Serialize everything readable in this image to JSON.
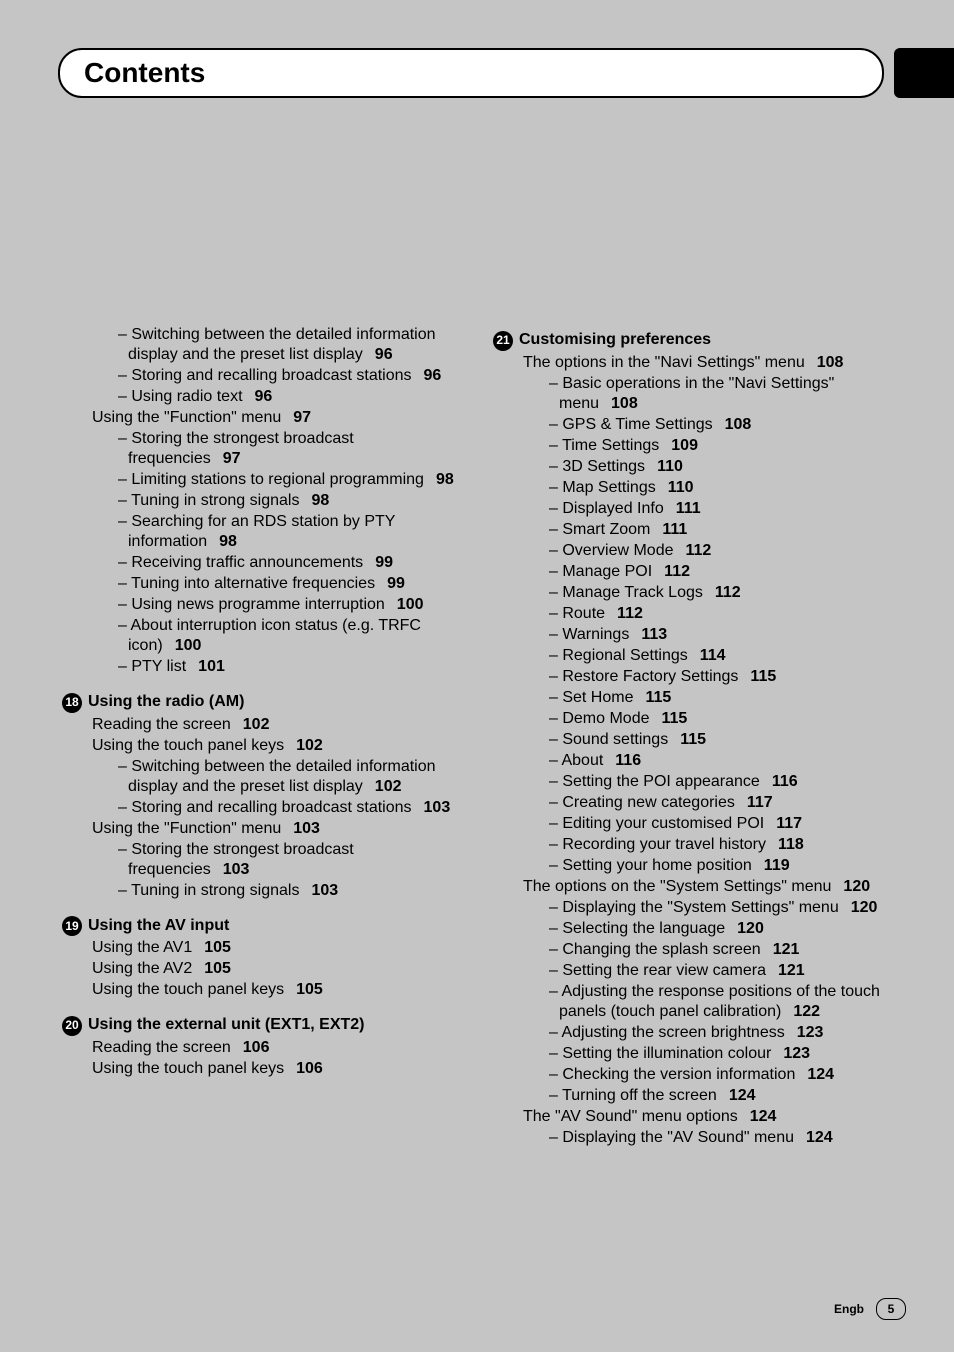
{
  "header": {
    "title": "Contents"
  },
  "footer": {
    "lang": "Engb",
    "page": "5"
  },
  "left": {
    "pre": [
      {
        "type": "sub",
        "text": "Switching between the detailed information display and the preset list display",
        "page": "96"
      },
      {
        "type": "sub",
        "text": "Storing and recalling broadcast stations",
        "page": "96"
      },
      {
        "type": "sub",
        "text": "Using radio text",
        "page": "96"
      },
      {
        "type": "top",
        "text": "Using the \"Function\" menu",
        "page": "97"
      },
      {
        "type": "sub",
        "text": "Storing the strongest broadcast frequencies",
        "page": "97"
      },
      {
        "type": "sub",
        "text": "Limiting stations to regional programming",
        "page": "98"
      },
      {
        "type": "sub",
        "text": "Tuning in strong signals",
        "page": "98"
      },
      {
        "type": "sub",
        "text": "Searching for an RDS station by PTY information",
        "page": "98"
      },
      {
        "type": "sub",
        "text": "Receiving traffic announcements",
        "page": "99"
      },
      {
        "type": "sub",
        "text": "Tuning into alternative frequencies",
        "page": "99"
      },
      {
        "type": "sub",
        "text": "Using news programme interruption",
        "page": "100"
      },
      {
        "type": "sub",
        "text": "About interruption icon status (e.g. TRFC icon)",
        "page": "100"
      },
      {
        "type": "sub",
        "text": "PTY list",
        "page": "101"
      }
    ],
    "chapters": [
      {
        "num": "18",
        "title": "Using the radio (AM)",
        "lines": [
          {
            "type": "top",
            "text": "Reading the screen",
            "page": "102"
          },
          {
            "type": "top",
            "text": "Using the touch panel keys",
            "page": "102"
          },
          {
            "type": "sub",
            "text": "Switching between the detailed information display and the preset list display",
            "page": "102"
          },
          {
            "type": "sub",
            "text": "Storing and recalling broadcast stations",
            "page": "103"
          },
          {
            "type": "top",
            "text": "Using the \"Function\" menu",
            "page": "103"
          },
          {
            "type": "sub",
            "text": "Storing the strongest broadcast frequencies",
            "page": "103"
          },
          {
            "type": "sub",
            "text": "Tuning in strong signals",
            "page": "103"
          }
        ]
      },
      {
        "num": "19",
        "title": "Using the AV input",
        "lines": [
          {
            "type": "top",
            "text": "Using the AV1",
            "page": "105"
          },
          {
            "type": "top",
            "text": "Using the AV2",
            "page": "105"
          },
          {
            "type": "top",
            "text": "Using the touch panel keys",
            "page": "105"
          }
        ]
      },
      {
        "num": "20",
        "title": "Using the external unit (EXT1, EXT2)",
        "lines": [
          {
            "type": "top",
            "text": "Reading the screen",
            "page": "106"
          },
          {
            "type": "top",
            "text": "Using the touch panel keys",
            "page": "106"
          }
        ]
      }
    ]
  },
  "right": {
    "chapters": [
      {
        "num": "21",
        "title": "Customising preferences",
        "lines": [
          {
            "type": "top",
            "text": "The options in the \"Navi Settings\" menu",
            "page": "108"
          },
          {
            "type": "sub",
            "text": "Basic operations in the \"Navi Settings\" menu",
            "page": "108"
          },
          {
            "type": "sub",
            "text": "GPS & Time Settings",
            "page": "108"
          },
          {
            "type": "sub",
            "text": "Time Settings",
            "page": "109"
          },
          {
            "type": "sub",
            "text": "3D Settings",
            "page": "110"
          },
          {
            "type": "sub",
            "text": "Map Settings",
            "page": "110"
          },
          {
            "type": "sub",
            "text": "Displayed Info",
            "page": "111"
          },
          {
            "type": "sub",
            "text": "Smart Zoom",
            "page": "111"
          },
          {
            "type": "sub",
            "text": "Overview Mode",
            "page": "112"
          },
          {
            "type": "sub",
            "text": "Manage POI",
            "page": "112"
          },
          {
            "type": "sub",
            "text": "Manage Track Logs",
            "page": "112"
          },
          {
            "type": "sub",
            "text": "Route",
            "page": "112"
          },
          {
            "type": "sub",
            "text": "Warnings",
            "page": "113"
          },
          {
            "type": "sub",
            "text": "Regional Settings",
            "page": "114"
          },
          {
            "type": "sub",
            "text": "Restore Factory Settings",
            "page": "115"
          },
          {
            "type": "sub",
            "text": "Set Home",
            "page": "115"
          },
          {
            "type": "sub",
            "text": "Demo Mode",
            "page": "115"
          },
          {
            "type": "sub",
            "text": "Sound settings",
            "page": "115"
          },
          {
            "type": "sub",
            "text": "About",
            "page": "116"
          },
          {
            "type": "sub",
            "text": "Setting the POI appearance",
            "page": "116"
          },
          {
            "type": "sub",
            "text": "Creating new categories",
            "page": "117"
          },
          {
            "type": "sub",
            "text": "Editing your customised POI",
            "page": "117"
          },
          {
            "type": "sub",
            "text": "Recording your travel history",
            "page": "118"
          },
          {
            "type": "sub",
            "text": "Setting your home position",
            "page": "119"
          },
          {
            "type": "top",
            "text": "The options on the \"System Settings\" menu",
            "page": "120"
          },
          {
            "type": "sub",
            "text": "Displaying the \"System Settings\" menu",
            "page": "120"
          },
          {
            "type": "sub",
            "text": "Selecting the language",
            "page": "120"
          },
          {
            "type": "sub",
            "text": "Changing the splash screen",
            "page": "121"
          },
          {
            "type": "sub",
            "text": "Setting the rear view camera",
            "page": "121"
          },
          {
            "type": "sub",
            "text": "Adjusting the response positions of the touch panels (touch panel calibration)",
            "page": "122"
          },
          {
            "type": "sub",
            "text": "Adjusting the screen brightness",
            "page": "123"
          },
          {
            "type": "sub",
            "text": "Setting the illumination colour",
            "page": "123"
          },
          {
            "type": "sub",
            "text": "Checking the version information",
            "page": "124"
          },
          {
            "type": "sub",
            "text": "Turning off the screen",
            "page": "124"
          },
          {
            "type": "top",
            "text": "The \"AV Sound\" menu options",
            "page": "124"
          },
          {
            "type": "sub",
            "text": "Displaying the \"AV Sound\" menu",
            "page": "124"
          }
        ]
      }
    ]
  }
}
